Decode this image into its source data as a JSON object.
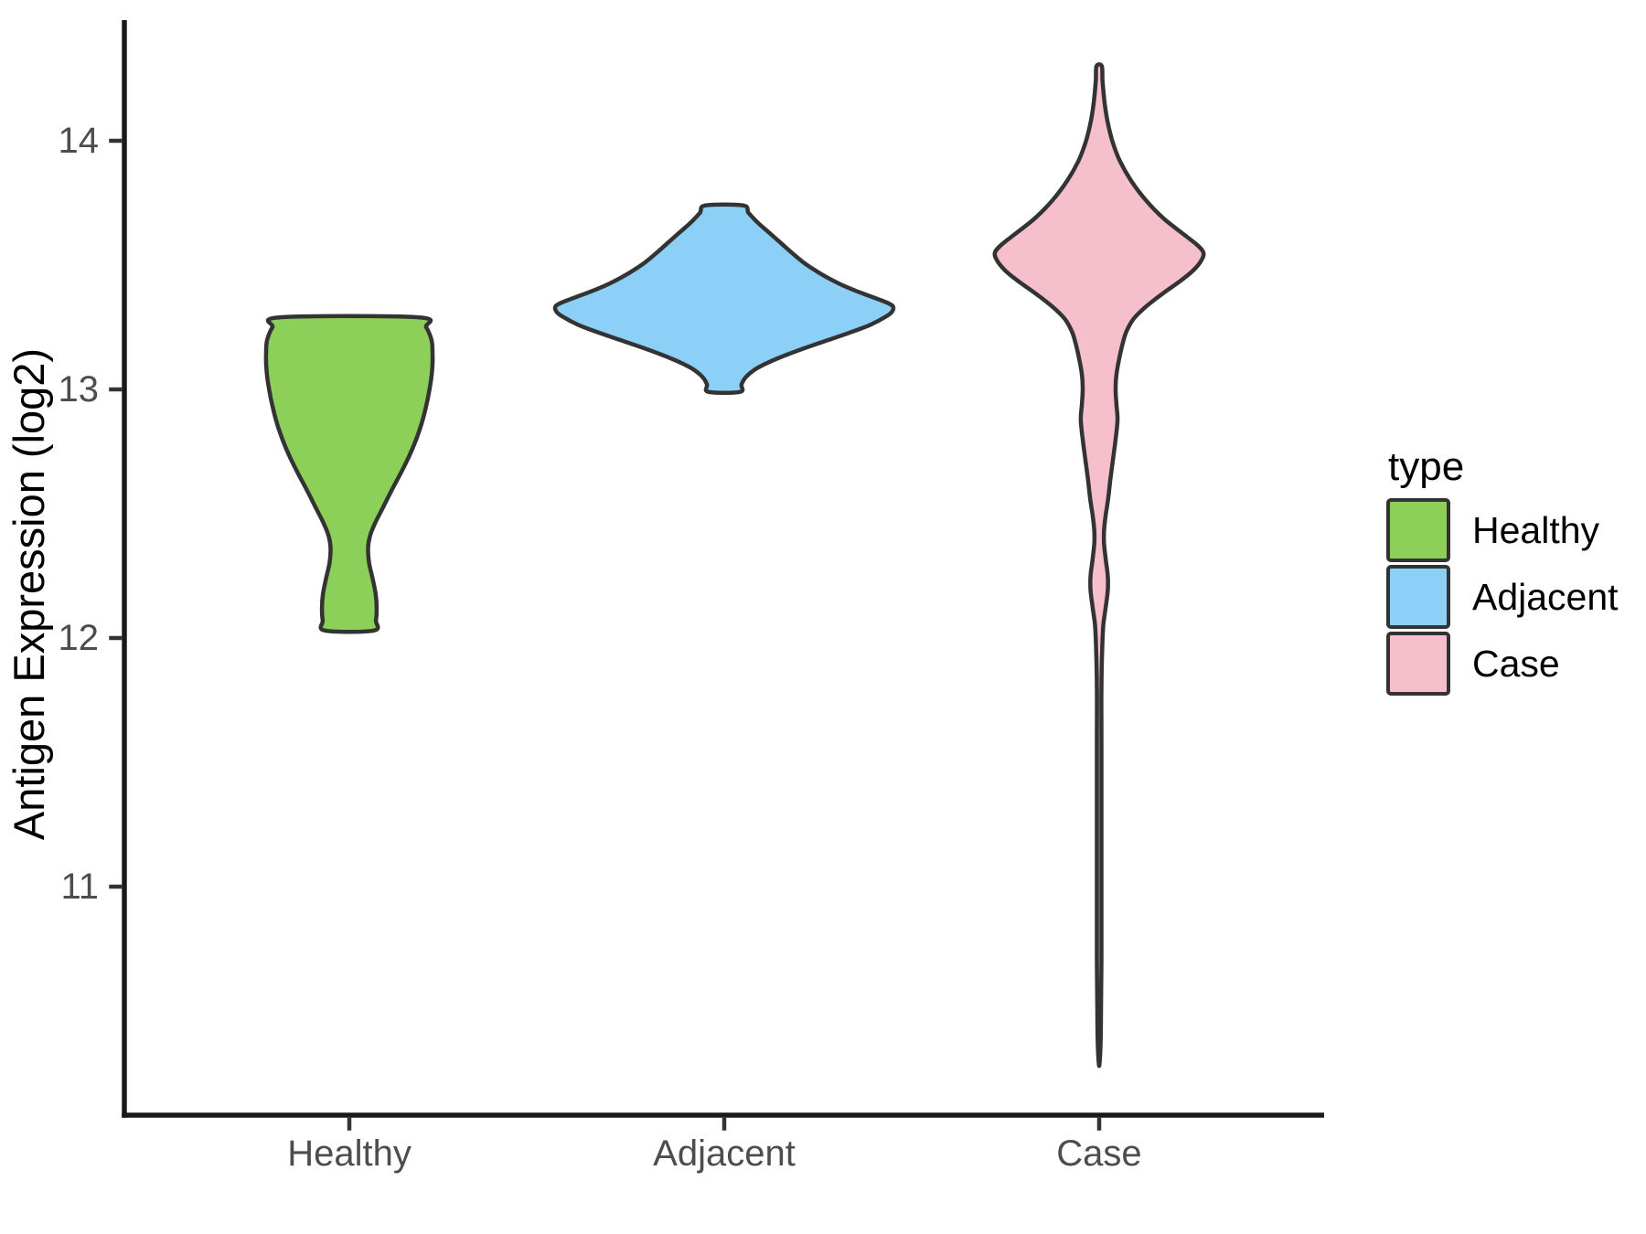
{
  "chart_data": {
    "type": "violin",
    "title": "",
    "xlabel": "",
    "ylabel": "Antigen Expression (log2)",
    "categories": [
      "Healthy",
      "Adjacent",
      "Case"
    ],
    "y_ticks": [
      14,
      13,
      12,
      11
    ],
    "ylim": [
      10.09,
      14.49
    ],
    "grid": false,
    "legend_position": "right",
    "legend": {
      "title": "type",
      "entries": [
        {
          "label": "Healthy",
          "color": "#8CD05A"
        },
        {
          "label": "Adjacent",
          "color": "#8CCFF7"
        },
        {
          "label": "Case",
          "color": "#F5BFCB"
        }
      ]
    },
    "series": [
      {
        "name": "Healthy",
        "fill": "#8CD05A",
        "value_range": [
          12.03,
          13.29
        ],
        "profile": [
          [
            13.29,
            0.183
          ],
          [
            13.25,
            0.205
          ],
          [
            13.2,
            0.219
          ],
          [
            13.15,
            0.222
          ],
          [
            13.08,
            0.221
          ],
          [
            13.0,
            0.214
          ],
          [
            12.92,
            0.203
          ],
          [
            12.84,
            0.188
          ],
          [
            12.76,
            0.168
          ],
          [
            12.68,
            0.143
          ],
          [
            12.6,
            0.115
          ],
          [
            12.52,
            0.088
          ],
          [
            12.46,
            0.068
          ],
          [
            12.41,
            0.055
          ],
          [
            12.36,
            0.05
          ],
          [
            12.3,
            0.053
          ],
          [
            12.24,
            0.062
          ],
          [
            12.18,
            0.07
          ],
          [
            12.12,
            0.073
          ],
          [
            12.07,
            0.071
          ],
          [
            12.03,
            0.065
          ]
        ]
      },
      {
        "name": "Adjacent",
        "fill": "#8CCFF7",
        "value_range": [
          12.99,
          13.74
        ],
        "profile": [
          [
            13.74,
            0.05
          ],
          [
            13.71,
            0.065
          ],
          [
            13.67,
            0.09
          ],
          [
            13.63,
            0.12
          ],
          [
            13.59,
            0.15
          ],
          [
            13.55,
            0.18
          ],
          [
            13.51,
            0.212
          ],
          [
            13.47,
            0.252
          ],
          [
            13.43,
            0.3
          ],
          [
            13.4,
            0.345
          ],
          [
            13.37,
            0.398
          ],
          [
            13.345,
            0.44
          ],
          [
            13.33,
            0.451
          ],
          [
            13.31,
            0.446
          ],
          [
            13.29,
            0.428
          ],
          [
            13.26,
            0.39
          ],
          [
            13.23,
            0.338
          ],
          [
            13.2,
            0.28
          ],
          [
            13.17,
            0.222
          ],
          [
            13.14,
            0.168
          ],
          [
            13.11,
            0.12
          ],
          [
            13.08,
            0.082
          ],
          [
            13.05,
            0.058
          ],
          [
            13.02,
            0.046
          ],
          [
            12.99,
            0.042
          ]
        ]
      },
      {
        "name": "Case",
        "fill": "#F5BFCB",
        "value_range": [
          10.29,
          14.3
        ],
        "profile": [
          [
            14.3,
            0.007
          ],
          [
            14.24,
            0.009
          ],
          [
            14.16,
            0.014
          ],
          [
            14.08,
            0.022
          ],
          [
            14.0,
            0.035
          ],
          [
            13.92,
            0.055
          ],
          [
            13.84,
            0.085
          ],
          [
            13.76,
            0.125
          ],
          [
            13.69,
            0.17
          ],
          [
            13.63,
            0.22
          ],
          [
            13.58,
            0.262
          ],
          [
            13.55,
            0.278
          ],
          [
            13.52,
            0.273
          ],
          [
            13.48,
            0.252
          ],
          [
            13.44,
            0.22
          ],
          [
            13.4,
            0.183
          ],
          [
            13.36,
            0.147
          ],
          [
            13.32,
            0.115
          ],
          [
            13.28,
            0.09
          ],
          [
            13.23,
            0.072
          ],
          [
            13.18,
            0.062
          ],
          [
            13.12,
            0.053
          ],
          [
            13.06,
            0.046
          ],
          [
            13.0,
            0.044
          ],
          [
            12.94,
            0.046
          ],
          [
            12.88,
            0.049
          ],
          [
            12.8,
            0.044
          ],
          [
            12.72,
            0.037
          ],
          [
            12.64,
            0.03
          ],
          [
            12.56,
            0.024
          ],
          [
            12.49,
            0.017
          ],
          [
            12.43,
            0.013
          ],
          [
            12.38,
            0.013
          ],
          [
            12.31,
            0.018
          ],
          [
            12.25,
            0.023
          ],
          [
            12.19,
            0.023
          ],
          [
            12.12,
            0.017
          ],
          [
            12.05,
            0.011
          ],
          [
            11.95,
            0.008
          ],
          [
            11.8,
            0.006
          ],
          [
            11.6,
            0.006
          ],
          [
            11.3,
            0.006
          ],
          [
            11.0,
            0.006
          ],
          [
            10.7,
            0.006
          ],
          [
            10.5,
            0.005
          ],
          [
            10.38,
            0.004
          ],
          [
            10.29,
            0.001
          ]
        ]
      }
    ],
    "colors": {
      "violin_outline": "#333333",
      "axis_line": "#1a1a1a",
      "tick_mark": "#333333",
      "tick_label": "#4d4d4d",
      "axis_title": "#000000",
      "legend_text": "#000000",
      "background": "#ffffff"
    }
  }
}
